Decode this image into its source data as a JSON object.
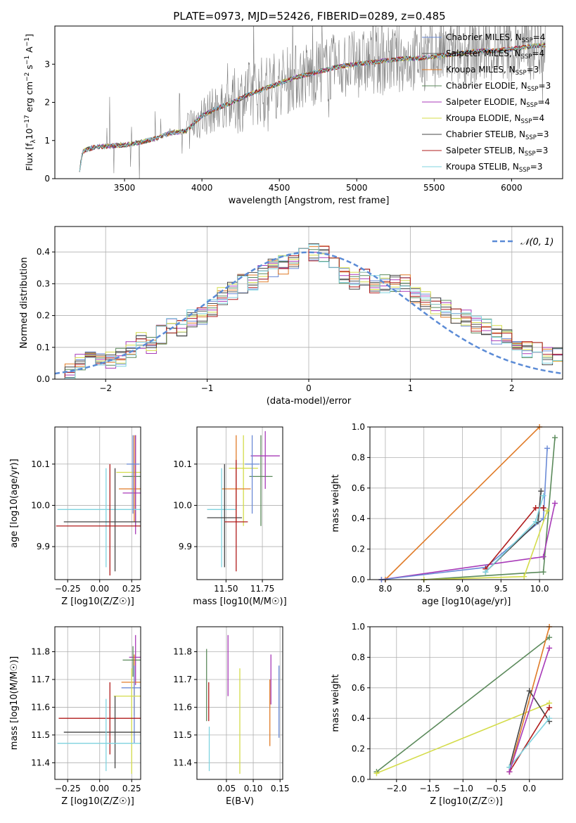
{
  "figure_title": "PLATE=0973, MJD=52426, FIBERID=0289, z=0.485",
  "legend_spectrum": [
    {
      "label": "Chabrier MILES, N",
      "sub": "SSP",
      "tail": "=4",
      "color": "#6b8bd6"
    },
    {
      "label": "Salpeter MILES, N",
      "sub": "SSP",
      "tail": "=4",
      "color": "#555555"
    },
    {
      "label": "Kroupa MILES, N",
      "sub": "SSP",
      "tail": "=3",
      "color": "#e07b28"
    },
    {
      "label": "Chabrier ELODIE, N",
      "sub": "SSP",
      "tail": "=3",
      "color": "#5b8a5b"
    },
    {
      "label": "Salpeter ELODIE, N",
      "sub": "SSP",
      "tail": "=4",
      "color": "#a83ab8"
    },
    {
      "label": "Kroupa ELODIE, N",
      "sub": "SSP",
      "tail": "=4",
      "color": "#d4dc4a"
    },
    {
      "label": "Chabrier STELIB, N",
      "sub": "SSP",
      "tail": "=3",
      "color": "#444444"
    },
    {
      "label": "Salpeter STELIB, N",
      "sub": "SSP",
      "tail": "=3",
      "color": "#b01c1c"
    },
    {
      "label": "Kroupa STELIB, N",
      "sub": "SSP",
      "tail": "=3",
      "color": "#7fd3df"
    }
  ],
  "hist_legend": "𝒩(0, 1)",
  "chart_data": [
    {
      "type": "line",
      "title": "PLATE=0973, MJD=52426, FIBERID=0289, z=0.485",
      "xlabel": "wavelength [Angstrom, rest frame]",
      "ylabel": "Flux [f_λ 10^-17 erg cm^-2 s^-1 A^-1]",
      "xlim": [
        3050,
        6330
      ],
      "ylim": [
        0,
        4.0
      ],
      "xticks": [
        "3500",
        "4000",
        "4500",
        "5000",
        "5500",
        "6000"
      ],
      "yticks": [
        "0",
        "1",
        "2",
        "3"
      ],
      "model_continuum": {
        "x": [
          3200,
          3230,
          3300,
          3400,
          3500,
          3600,
          3700,
          3800,
          3900,
          3950,
          4000,
          4100,
          4200,
          4300,
          4400,
          4500,
          4600,
          4700,
          4800,
          4900,
          5000,
          5100,
          5200,
          5300,
          5400,
          5500,
          5600,
          5700,
          5800,
          5900,
          6000,
          6100,
          6200
        ],
        "y": [
          0.0,
          0.72,
          0.82,
          0.86,
          0.88,
          0.95,
          1.05,
          1.2,
          1.25,
          1.45,
          1.65,
          1.85,
          2.0,
          2.2,
          2.35,
          2.5,
          2.65,
          2.75,
          2.85,
          2.95,
          3.0,
          3.05,
          3.1,
          3.15,
          3.15,
          3.2,
          3.25,
          3.3,
          3.35,
          3.35,
          3.4,
          3.45,
          3.5
        ]
      },
      "series": [
        "Chabrier MILES, NSSP=4",
        "Salpeter MILES, NSSP=4",
        "Kroupa MILES, NSSP=3",
        "Chabrier ELODIE, NSSP=3",
        "Salpeter ELODIE, NSSP=4",
        "Kroupa ELODIE, NSSP=4",
        "Chabrier STELIB, NSSP=3",
        "Salpeter STELIB, NSSP=3",
        "Kroupa STELIB, NSSP=3"
      ],
      "data_color": "#808080",
      "legend_position": "right"
    },
    {
      "type": "step",
      "xlabel": "(data-model)/error",
      "ylabel": "Normed distribution",
      "xlim": [
        -2.5,
        2.5
      ],
      "ylim": [
        0,
        0.48
      ],
      "xticks": [
        "−2",
        "−1",
        "0",
        "1",
        "2"
      ],
      "yticks": [
        "0.0",
        "0.1",
        "0.2",
        "0.3",
        "0.4"
      ],
      "bins": [
        -2.5,
        -2.4,
        -2.3,
        -2.2,
        -2.1,
        -2.0,
        -1.9,
        -1.8,
        -1.7,
        -1.6,
        -1.5,
        -1.4,
        -1.3,
        -1.2,
        -1.1,
        -1.0,
        -0.9,
        -0.8,
        -0.7,
        -0.6,
        -0.5,
        -0.4,
        -0.3,
        -0.2,
        -0.1,
        0.0,
        0.1,
        0.2,
        0.3,
        0.4,
        0.5,
        0.6,
        0.7,
        0.8,
        0.9,
        1.0,
        1.1,
        1.2,
        1.3,
        1.4,
        1.5,
        1.6,
        1.7,
        1.8,
        1.9,
        2.0,
        2.1,
        2.2,
        2.3,
        2.4,
        2.5
      ],
      "base_density": [
        0.02,
        0.025,
        0.05,
        0.08,
        0.06,
        0.06,
        0.07,
        0.09,
        0.12,
        0.11,
        0.14,
        0.17,
        0.16,
        0.19,
        0.2,
        0.22,
        0.26,
        0.28,
        0.3,
        0.31,
        0.33,
        0.35,
        0.36,
        0.37,
        0.39,
        0.4,
        0.39,
        0.37,
        0.33,
        0.31,
        0.32,
        0.3,
        0.3,
        0.3,
        0.3,
        0.27,
        0.25,
        0.23,
        0.22,
        0.2,
        0.19,
        0.17,
        0.16,
        0.14,
        0.13,
        0.1,
        0.09,
        0.09,
        0.07,
        0.07
      ],
      "gaussian_label": "𝒩(0, 1)",
      "gaussian_color": "#5b8bd6",
      "grid": true
    },
    {
      "type": "errorbar",
      "xlabel": "Z [log10(Z/Z☉)]",
      "ylabel": "age [log10(age/yr)]",
      "xlim": [
        -0.35,
        0.32
      ],
      "ylim": [
        9.82,
        10.19
      ],
      "xticks": [
        "−0.25",
        "0.00",
        "0.25"
      ],
      "yticks": [
        "9.9",
        "10.0",
        "10.1"
      ],
      "points": [
        {
          "x": 0.28,
          "xerr": 0.1,
          "y": 10.07,
          "yerr": [
            0.12,
            0.1
          ],
          "color": "#5b8a5b"
        },
        {
          "x": 0.28,
          "xerr": 0.15,
          "y": 10.08,
          "yerr": [
            0.1,
            0.08
          ],
          "color": "#d4dc4a"
        },
        {
          "x": 0.27,
          "xerr": 0.12,
          "y": 10.04,
          "yerr": [
            0.08,
            0.13
          ],
          "color": "#e07b28"
        },
        {
          "x": 0.28,
          "xerr": 0.1,
          "y": 10.03,
          "yerr": [
            0.1,
            0.14
          ],
          "color": "#a83ab8"
        },
        {
          "x": 0.05,
          "xerr": 0.38,
          "y": 9.99,
          "yerr": [
            0.14,
            0.1
          ],
          "color": "#7fd3df"
        },
        {
          "x": 0.12,
          "xerr": 0.4,
          "y": 9.96,
          "yerr": [
            0.12,
            0.13
          ],
          "color": "#444444"
        },
        {
          "x": 0.08,
          "xerr": 0.42,
          "y": 9.95,
          "yerr": [
            0.12,
            0.15
          ],
          "color": "#b01c1c"
        },
        {
          "x": 0.26,
          "xerr": 0.05,
          "y": 10.1,
          "yerr": [
            0.12,
            0.07
          ],
          "color": "#6b8bd6"
        }
      ]
    },
    {
      "type": "errorbar",
      "xlabel": "mass [log10(M/M☉)]",
      "ylabel": "",
      "xlim": [
        11.3,
        11.89
      ],
      "ylim": [
        9.82,
        10.19
      ],
      "xticks": [
        "11.50",
        "11.75"
      ],
      "yticks": [
        "9.9",
        "10.0",
        "10.1"
      ],
      "points": [
        {
          "x": 11.74,
          "xerr": 0.08,
          "y": 10.07,
          "yerr": [
            0.12,
            0.1
          ],
          "color": "#5b8a5b"
        },
        {
          "x": 11.62,
          "xerr": 0.1,
          "y": 10.09,
          "yerr": [
            0.14,
            0.08
          ],
          "color": "#d4dc4a"
        },
        {
          "x": 11.57,
          "xerr": 0.1,
          "y": 10.04,
          "yerr": [
            0.08,
            0.13
          ],
          "color": "#e07b28"
        },
        {
          "x": 11.77,
          "xerr": 0.1,
          "y": 10.12,
          "yerr": [
            0.08,
            0.06
          ],
          "color": "#a83ab8"
        },
        {
          "x": 11.47,
          "xerr": 0.1,
          "y": 9.99,
          "yerr": [
            0.14,
            0.1
          ],
          "color": "#7fd3df"
        },
        {
          "x": 11.49,
          "xerr": 0.12,
          "y": 9.97,
          "yerr": [
            0.12,
            0.13
          ],
          "color": "#444444"
        },
        {
          "x": 11.57,
          "xerr": 0.08,
          "y": 9.96,
          "yerr": [
            0.12,
            0.15
          ],
          "color": "#b01c1c"
        },
        {
          "x": 11.68,
          "xerr": 0.05,
          "y": 10.1,
          "yerr": [
            0.12,
            0.07
          ],
          "color": "#6b8bd6"
        }
      ]
    },
    {
      "type": "line",
      "xlabel": "age [log10(age/yr)]",
      "ylabel": "mass weight",
      "xlim": [
        7.8,
        10.3
      ],
      "ylim": [
        0,
        1.0
      ],
      "xticks": [
        "8.0",
        "8.5",
        "9.0",
        "9.5",
        "10.0"
      ],
      "yticks": [
        "0.0",
        "0.2",
        "0.4",
        "0.6",
        "0.8",
        "1.0"
      ],
      "series": [
        {
          "color": "#e07b28",
          "points": [
            [
              8.0,
              0.0
            ],
            [
              10.0,
              1.0
            ]
          ]
        },
        {
          "color": "#5b8a5b",
          "points": [
            [
              8.5,
              0.0
            ],
            [
              10.05,
              0.05
            ],
            [
              10.2,
              0.93
            ]
          ]
        },
        {
          "color": "#a83ab8",
          "points": [
            [
              7.95,
              0.0
            ],
            [
              10.05,
              0.15
            ],
            [
              10.2,
              0.5
            ]
          ]
        },
        {
          "color": "#6b8bd6",
          "points": [
            [
              7.95,
              0.0
            ],
            [
              9.3,
              0.08
            ],
            [
              10.05,
              0.4
            ],
            [
              10.1,
              0.86
            ]
          ]
        },
        {
          "color": "#444444",
          "points": [
            [
              9.3,
              0.05
            ],
            [
              9.98,
              0.38
            ],
            [
              10.02,
              0.58
            ]
          ]
        },
        {
          "color": "#b01c1c",
          "points": [
            [
              9.3,
              0.07
            ],
            [
              9.95,
              0.47
            ],
            [
              10.05,
              0.47
            ]
          ]
        },
        {
          "color": "#d4dc4a",
          "points": [
            [
              8.5,
              0.0
            ],
            [
              9.8,
              0.02
            ],
            [
              10.1,
              0.45
            ]
          ]
        },
        {
          "color": "#7fd3df",
          "points": [
            [
              9.3,
              0.05
            ],
            [
              9.95,
              0.38
            ],
            [
              10.05,
              0.55
            ]
          ]
        }
      ]
    },
    {
      "type": "errorbar",
      "xlabel": "Z [log10(Z/Z☉)]",
      "ylabel": "mass [log10(M/M☉)]",
      "xlim": [
        -0.35,
        0.32
      ],
      "ylim": [
        11.34,
        11.89
      ],
      "xticks": [
        "−0.25",
        "0.00",
        "0.25"
      ],
      "yticks": [
        "11.4",
        "11.5",
        "11.6",
        "11.7",
        "11.8"
      ],
      "points": [
        {
          "x": 0.28,
          "xerr": 0.05,
          "y": 11.78,
          "yerr": [
            0.1,
            0.08
          ],
          "color": "#a83ab8"
        },
        {
          "x": 0.26,
          "xerr": 0.08,
          "y": 11.77,
          "yerr": [
            0.06,
            0.05
          ],
          "color": "#5b8a5b"
        },
        {
          "x": 0.27,
          "xerr": 0.1,
          "y": 11.69,
          "yerr": [
            0.12,
            0.1
          ],
          "color": "#e07b28"
        },
        {
          "x": 0.27,
          "xerr": 0.1,
          "y": 11.67,
          "yerr": [
            0.2,
            0.08
          ],
          "color": "#6b8bd6"
        },
        {
          "x": 0.25,
          "xerr": 0.14,
          "y": 11.64,
          "yerr": [
            0.28,
            0.1
          ],
          "color": "#d4dc4a"
        },
        {
          "x": 0.08,
          "xerr": 0.4,
          "y": 11.56,
          "yerr": [
            0.13,
            0.13
          ],
          "color": "#b01c1c"
        },
        {
          "x": 0.12,
          "xerr": 0.4,
          "y": 11.51,
          "yerr": [
            0.13,
            0.13
          ],
          "color": "#444444"
        },
        {
          "x": 0.05,
          "xerr": 0.38,
          "y": 11.47,
          "yerr": [
            0.1,
            0.16
          ],
          "color": "#7fd3df"
        }
      ]
    },
    {
      "type": "errorbar",
      "xlabel": "E(B-V)",
      "ylabel": "",
      "xlim": [
        -0.005,
        0.155
      ],
      "ylim": [
        11.34,
        11.89
      ],
      "xticks": [
        "0.05",
        "0.10",
        "0.15"
      ],
      "yticks": [
        "11.4",
        "11.5",
        "11.6",
        "11.7",
        "11.8"
      ],
      "points": [
        {
          "x": 0.013,
          "y": 11.68,
          "yerr": [
            0.13,
            0.13
          ],
          "color": "#5b8a5b"
        },
        {
          "x": 0.017,
          "y": 11.62,
          "yerr": [
            0.07,
            0.07
          ],
          "color": "#b01c1c"
        },
        {
          "x": 0.018,
          "y": 11.45,
          "yerr": [
            0.08,
            0.08
          ],
          "color": "#7fd3df"
        },
        {
          "x": 0.053,
          "y": 11.75,
          "yerr": [
            0.11,
            0.11
          ],
          "color": "#a83ab8"
        },
        {
          "x": 0.075,
          "y": 11.55,
          "yerr": [
            0.19,
            0.19
          ],
          "color": "#d4dc4a"
        },
        {
          "x": 0.131,
          "y": 11.58,
          "yerr": [
            0.12,
            0.12
          ],
          "color": "#e07b28"
        },
        {
          "x": 0.133,
          "y": 11.7,
          "yerr": [
            0.09,
            0.09
          ],
          "color": "#a83ab8"
        },
        {
          "x": 0.148,
          "y": 11.62,
          "yerr": [
            0.13,
            0.13
          ],
          "color": "#6b8bd6"
        }
      ]
    },
    {
      "type": "line",
      "xlabel": "Z [log10(Z/Z☉)]",
      "ylabel": "mass weight",
      "xlim": [
        -2.4,
        0.5
      ],
      "ylim": [
        0,
        1.0
      ],
      "xticks": [
        "−2.0",
        "−1.5",
        "−1.0",
        "−0.5",
        "0.0"
      ],
      "yticks": [
        "0.0",
        "0.2",
        "0.4",
        "0.6",
        "0.8",
        "1.0"
      ],
      "series": [
        {
          "color": "#5b8a5b",
          "points": [
            [
              -2.3,
              0.05
            ],
            [
              0.3,
              0.93
            ]
          ]
        },
        {
          "color": "#d4dc4a",
          "points": [
            [
              -2.3,
              0.04
            ],
            [
              0.3,
              0.5
            ]
          ]
        },
        {
          "color": "#e07b28",
          "points": [
            [
              -0.3,
              0.05
            ],
            [
              0.3,
              1.0
            ]
          ]
        },
        {
          "color": "#444444",
          "points": [
            [
              -0.3,
              0.08
            ],
            [
              0.0,
              0.58
            ],
            [
              0.3,
              0.38
            ]
          ]
        },
        {
          "color": "#b01c1c",
          "points": [
            [
              -0.3,
              0.05
            ],
            [
              0.3,
              0.47
            ]
          ]
        },
        {
          "color": "#7fd3df",
          "points": [
            [
              -0.3,
              0.08
            ],
            [
              0.3,
              0.4
            ]
          ]
        },
        {
          "color": "#a83ab8",
          "points": [
            [
              -0.3,
              0.05
            ],
            [
              0.3,
              0.86
            ]
          ]
        }
      ]
    }
  ]
}
